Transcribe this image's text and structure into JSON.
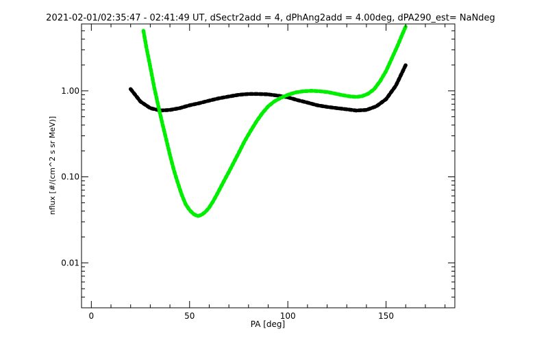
{
  "chart_data": {
    "type": "line",
    "title": "2021-02-01/02:35:47 - 02:41:49 UT, dSectr2add = 4, dPhAng2add = 4.00deg, dPA290_est=   NaNdeg",
    "xlabel": "PA [deg]",
    "ylabel": "nflux [#/(cm^2 s sr MeV)]",
    "xlim": [
      -5,
      185
    ],
    "ylim": [
      0.003,
      6.0
    ],
    "yscale": "log",
    "grid": false,
    "xticks": [
      {
        "value": 0,
        "label": "0"
      },
      {
        "value": 50,
        "label": "50"
      },
      {
        "value": 100,
        "label": "100"
      },
      {
        "value": 150,
        "label": "150"
      }
    ],
    "yticks": [
      {
        "value": 0.01,
        "label": "0.01"
      },
      {
        "value": 0.1,
        "label": "0.10"
      },
      {
        "value": 1.0,
        "label": "1.00"
      }
    ],
    "series": [
      {
        "color": "#000000",
        "x": [
          20,
          25,
          30,
          35,
          40,
          45,
          50,
          55,
          60,
          65,
          70,
          75,
          80,
          85,
          90,
          95,
          100,
          105,
          110,
          115,
          120,
          125,
          130,
          135,
          140,
          145,
          150,
          155,
          160
        ],
        "y": [
          1.05,
          0.75,
          0.63,
          0.59,
          0.6,
          0.63,
          0.68,
          0.72,
          0.77,
          0.82,
          0.86,
          0.9,
          0.92,
          0.92,
          0.91,
          0.88,
          0.84,
          0.78,
          0.73,
          0.68,
          0.65,
          0.63,
          0.61,
          0.59,
          0.6,
          0.66,
          0.8,
          1.15,
          2.0
        ]
      },
      {
        "color": "#00ee00",
        "x": [
          26.5,
          28,
          30,
          32,
          34,
          36,
          38,
          40,
          42,
          44,
          46,
          48,
          50,
          52,
          54,
          56,
          58,
          60,
          62,
          64,
          66,
          68,
          70,
          72,
          75,
          78,
          81,
          84,
          87,
          90,
          93,
          96,
          100,
          104,
          108,
          112,
          116,
          120,
          124,
          128,
          132,
          135,
          138,
          141,
          144,
          147,
          150,
          153,
          156,
          158,
          160
        ],
        "y": [
          5.0,
          3.2,
          1.9,
          1.1,
          0.68,
          0.43,
          0.28,
          0.18,
          0.12,
          0.085,
          0.062,
          0.048,
          0.041,
          0.037,
          0.035,
          0.036,
          0.039,
          0.044,
          0.052,
          0.063,
          0.077,
          0.094,
          0.114,
          0.14,
          0.19,
          0.26,
          0.34,
          0.44,
          0.55,
          0.66,
          0.75,
          0.82,
          0.9,
          0.96,
          0.99,
          1.0,
          0.99,
          0.97,
          0.93,
          0.89,
          0.86,
          0.85,
          0.87,
          0.93,
          1.05,
          1.3,
          1.7,
          2.4,
          3.4,
          4.4,
          5.6
        ]
      }
    ]
  }
}
